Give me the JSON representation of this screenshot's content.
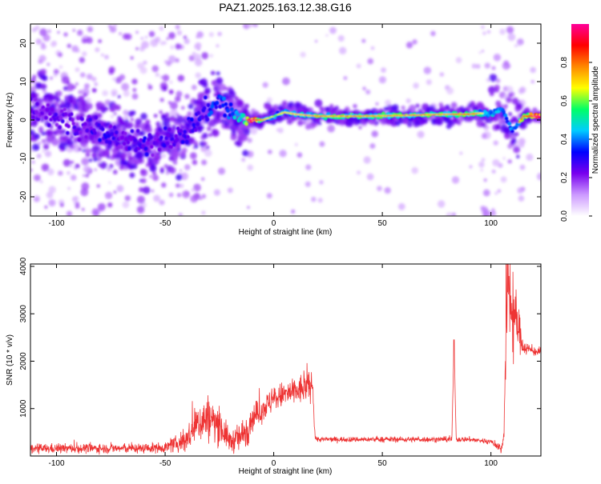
{
  "title": "PAZ1.2025.163.12.38.G16",
  "chart_data": [
    {
      "type": "heatmap",
      "xlabel": "Height of straight line (km)",
      "ylabel": "Frequency (Hz)",
      "xlim": [
        -112,
        123
      ],
      "ylim": [
        -25,
        25
      ],
      "x_ticks": [
        -100,
        -50,
        0,
        50,
        100
      ],
      "y_ticks": [
        -20,
        -10,
        0,
        10,
        20
      ],
      "colorbar": {
        "label": "Normalized spectral amplitude",
        "range": [
          0,
          1
        ],
        "ticks": [
          "0.0",
          "0.2",
          "0.4",
          "0.6",
          "0.8"
        ],
        "colors": [
          "#ffffff",
          "#cc99ff",
          "#7700ee",
          "#0000ff",
          "#00ccff",
          "#00ff66",
          "#ffff00",
          "#ff8800",
          "#ff0000",
          "#ff0099"
        ]
      },
      "main_ridge": {
        "x": [
          -110,
          -100,
          -90,
          -80,
          -70,
          -60,
          -55,
          -50,
          -45,
          -40,
          -35,
          -30,
          -25,
          -20,
          -15,
          -10,
          -5,
          0,
          5,
          10,
          20,
          40,
          60,
          80,
          90,
          95,
          100,
          105,
          110,
          115,
          122
        ],
        "y": [
          3,
          1,
          -1,
          -3,
          -5,
          -7,
          -6,
          -4,
          -5,
          -3,
          0,
          3,
          5,
          2,
          0,
          0,
          0,
          1,
          2,
          1.5,
          1,
          1,
          1.2,
          1.5,
          1.5,
          1.8,
          1.5,
          3,
          -3,
          1,
          1
        ],
        "amplitude": [
          0.25,
          0.25,
          0.25,
          0.3,
          0.25,
          0.3,
          0.25,
          0.3,
          0.25,
          0.3,
          0.3,
          0.35,
          0.35,
          0.4,
          0.5,
          0.9,
          0.5,
          0.4,
          0.5,
          0.5,
          0.55,
          0.55,
          0.55,
          0.55,
          0.6,
          0.5,
          0.45,
          0.4,
          0.4,
          0.6,
          0.85
        ]
      }
    },
    {
      "type": "line",
      "xlabel": "Height of straight line (km)",
      "ylabel": "SNR (10 * v/v)",
      "xlim": [
        -112,
        123
      ],
      "ylim": [
        0,
        4050
      ],
      "x_ticks": [
        -100,
        -50,
        0,
        50,
        100
      ],
      "y_ticks": [
        1000,
        2000,
        3000,
        4000
      ],
      "color": "#ee3333",
      "baseline": {
        "x": [
          -112,
          -100,
          -80,
          -60,
          -50,
          -45,
          -40,
          -35,
          -30,
          -25,
          -20,
          -15,
          -12,
          -10,
          -5,
          0,
          5,
          10,
          15,
          18,
          19,
          20,
          30,
          40,
          50,
          60,
          70,
          80,
          82,
          83,
          84,
          90,
          100,
          105,
          106,
          107,
          108,
          110,
          112,
          115,
          120,
          123
        ],
        "y": [
          150,
          160,
          160,
          160,
          180,
          250,
          350,
          700,
          800,
          650,
          300,
          400,
          600,
          800,
          1000,
          1200,
          1300,
          1350,
          1450,
          1500,
          400,
          350,
          350,
          350,
          350,
          350,
          350,
          350,
          350,
          2400,
          350,
          350,
          300,
          150,
          500,
          2800,
          3600,
          3000,
          2800,
          2300,
          2200,
          2200
        ],
        "noise": [
          90,
          90,
          90,
          90,
          100,
          150,
          250,
          400,
          450,
          350,
          200,
          300,
          350,
          250,
          250,
          250,
          250,
          280,
          300,
          250,
          50,
          50,
          50,
          50,
          50,
          50,
          50,
          50,
          50,
          0,
          50,
          50,
          50,
          100,
          400,
          1000,
          900,
          900,
          500,
          150,
          80,
          80
        ]
      }
    }
  ]
}
